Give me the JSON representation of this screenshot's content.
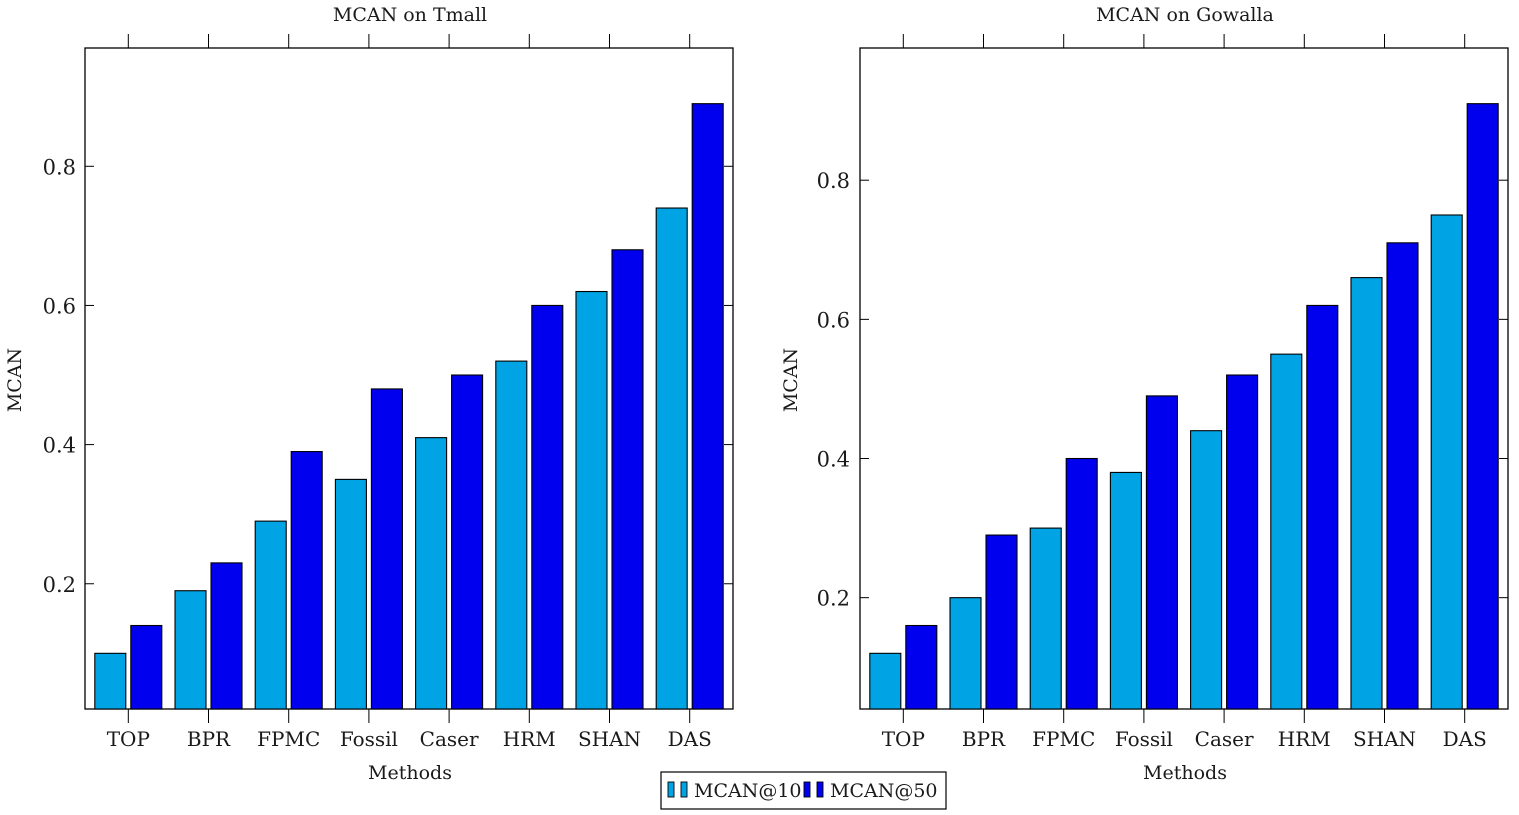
{
  "legend": {
    "entries": [
      {
        "name": "MCAN@10",
        "color": "#00a4e4"
      },
      {
        "name": "MCAN@50",
        "color": "#0000ee"
      }
    ]
  },
  "chart_data": [
    {
      "type": "bar",
      "title": "MCAN on Tmall",
      "xlabel": "Methods",
      "ylabel": "MCAN",
      "categories": [
        "TOP",
        "BPR",
        "FPMC",
        "Fossil",
        "Caser",
        "HRM",
        "SHAN",
        "DAS"
      ],
      "series": [
        {
          "name": "MCAN@10",
          "color": "#00a4e4",
          "values": [
            0.1,
            0.19,
            0.29,
            0.35,
            0.41,
            0.52,
            0.62,
            0.74
          ]
        },
        {
          "name": "MCAN@50",
          "color": "#0000ee",
          "values": [
            0.14,
            0.23,
            0.39,
            0.48,
            0.5,
            0.6,
            0.68,
            0.89
          ]
        }
      ],
      "yticks": [
        0.2,
        0.4,
        0.6,
        0.8
      ],
      "ylim": [
        0.02,
        0.97
      ],
      "grid": false,
      "legend_position": "bottom-center"
    },
    {
      "type": "bar",
      "title": "MCAN on Gowalla",
      "xlabel": "Methods",
      "ylabel": "MCAN",
      "categories": [
        "TOP",
        "BPR",
        "FPMC",
        "Fossil",
        "Caser",
        "HRM",
        "SHAN",
        "DAS"
      ],
      "series": [
        {
          "name": "MCAN@10",
          "color": "#00a4e4",
          "values": [
            0.12,
            0.2,
            0.3,
            0.38,
            0.44,
            0.55,
            0.66,
            0.75
          ]
        },
        {
          "name": "MCAN@50",
          "color": "#0000ee",
          "values": [
            0.16,
            0.29,
            0.4,
            0.49,
            0.52,
            0.62,
            0.71,
            0.91
          ]
        }
      ],
      "yticks": [
        0.2,
        0.4,
        0.6,
        0.8
      ],
      "ylim": [
        0.04,
        0.99
      ],
      "grid": false,
      "legend_position": "bottom-center"
    }
  ]
}
